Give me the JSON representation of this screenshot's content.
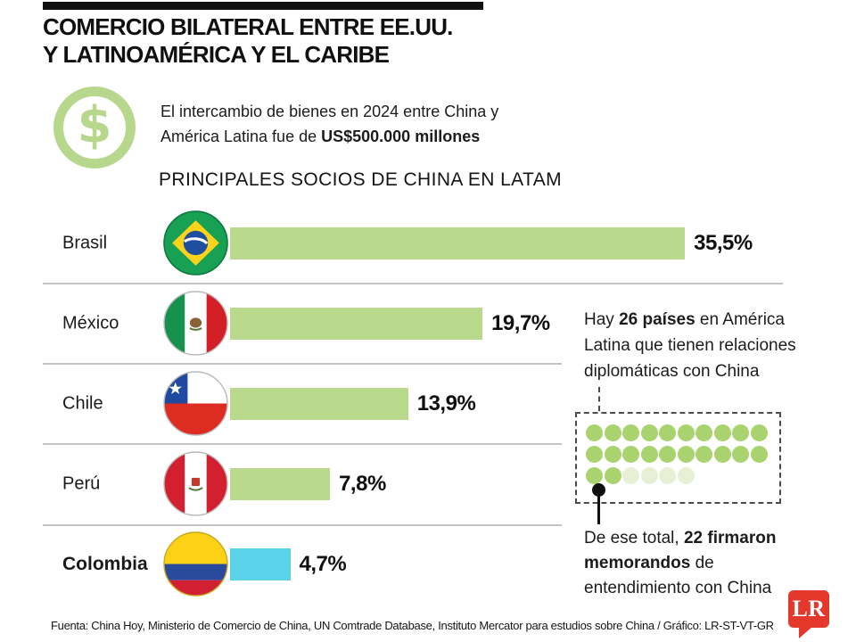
{
  "header": {
    "title_line1": "COMERCIO BILATERAL ENTRE EE.UU.",
    "title_line2": "Y LATINOAMÉRICA Y EL CARIBE"
  },
  "intro": {
    "dollar_glyph": "$",
    "line1": "El intercambio de bienes en 2024 entre China y",
    "line2_regular": "América Latina fue de ",
    "line2_bold": "US$500.000 millones"
  },
  "chart_data": {
    "type": "bar",
    "orientation": "horizontal",
    "title": "PRINCIPALES SOCIOS DE CHINA EN LATAM",
    "categories": [
      "Brasil",
      "México",
      "Chile",
      "Perú",
      "Colombia"
    ],
    "values": [
      35.5,
      19.7,
      13.9,
      7.8,
      4.7
    ],
    "value_labels": [
      "35,5%",
      "19,7%",
      "13,9%",
      "7,8%",
      "4,7%"
    ],
    "unit": "%",
    "xlim": [
      0,
      40
    ],
    "grid": false,
    "bar_colors": [
      "#b9d98c",
      "#b9d98c",
      "#b9d98c",
      "#b9d98c",
      "#5ad2e9"
    ],
    "highlight_category": "Colombia"
  },
  "chart": {
    "rows": [
      {
        "label": "Brasil",
        "flag": "brazil-flag-icon",
        "value": 35.5,
        "value_label": "35,5%",
        "color": "#b9d98c",
        "bold": false
      },
      {
        "label": "México",
        "flag": "mexico-flag-icon",
        "value": 19.7,
        "value_label": "19,7%",
        "color": "#b9d98c",
        "bold": false
      },
      {
        "label": "Chile",
        "flag": "chile-flag-icon",
        "value": 13.9,
        "value_label": "13,9%",
        "color": "#b9d98c",
        "bold": false
      },
      {
        "label": "Perú",
        "flag": "peru-flag-icon",
        "value": 7.8,
        "value_label": "7,8%",
        "color": "#b9d98c",
        "bold": false
      },
      {
        "label": "Colombia",
        "flag": "colombia-flag-icon",
        "value": 4.7,
        "value_label": "4,7%",
        "color": "#5ad2e9",
        "bold": true
      }
    ]
  },
  "aside": {
    "fact1_l1_pre": "Hay ",
    "fact1_l1_bold": "26 países",
    "fact1_l1_post": " en América",
    "fact1_l2": "Latina que tienen relaciones",
    "fact1_l3": "diplomáticas con China",
    "dots": {
      "total": 26,
      "highlighted": 22,
      "per_row": 10,
      "green_color": "#a9d36e",
      "pale_color": "#e7f0d4"
    },
    "fact2_l1_pre": "De ese total, ",
    "fact2_l1_bold": "22 firmaron",
    "fact2_l2_bold": "memorandos",
    "fact2_l2_post": " de",
    "fact2_l3": "entendimiento con China"
  },
  "footer": {
    "source": "Fuenta: China Hoy, Ministerio de Comercio de China, UN Comtrade Database, Instituto Mercator para estudios sobre China / Gráfico: LR-ST-VT-GR",
    "logo_text": "LR",
    "logo_color": "#e5382c"
  }
}
